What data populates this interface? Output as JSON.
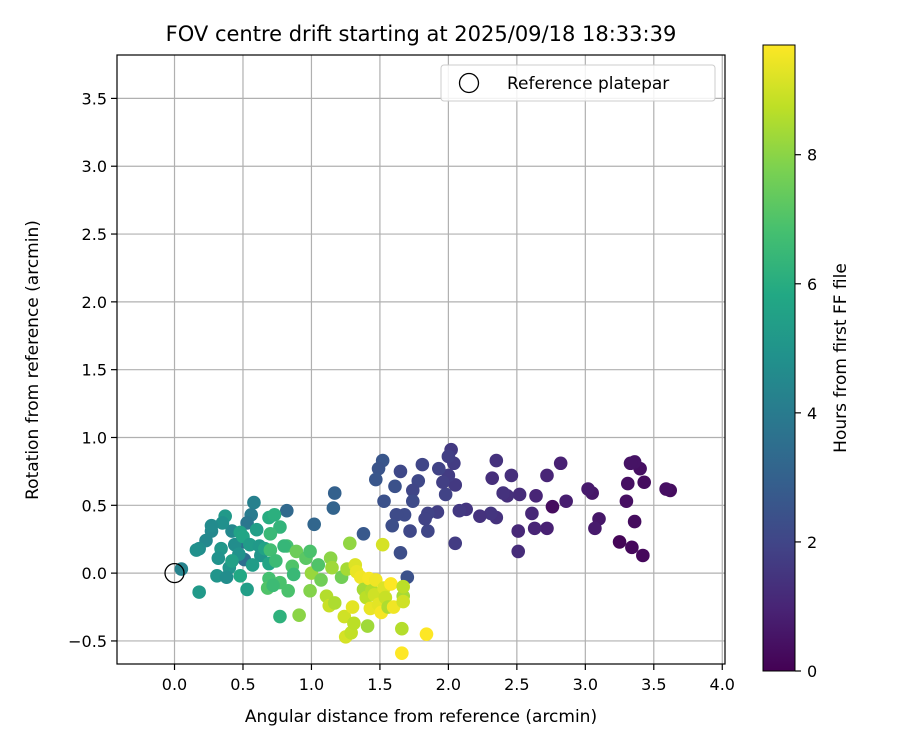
{
  "chart_data": {
    "type": "scatter",
    "title": "FOV centre drift starting at 2025/09/18 18:33:39",
    "xlabel": "Angular distance from reference (arcmin)",
    "ylabel": "Rotation from reference (arcmin)",
    "xlim": [
      -0.42,
      4.02
    ],
    "ylim": [
      -0.67,
      3.82
    ],
    "x_ticks": [
      0.0,
      0.5,
      1.0,
      1.5,
      2.0,
      2.5,
      3.0,
      3.5,
      4.0
    ],
    "x_tick_labels": [
      "0.0",
      "0.5",
      "1.0",
      "1.5",
      "2.0",
      "2.5",
      "3.0",
      "3.5",
      "4.0"
    ],
    "y_ticks": [
      -0.5,
      0.0,
      0.5,
      1.0,
      1.5,
      2.0,
      2.5,
      3.0,
      3.5
    ],
    "y_tick_labels": [
      "−0.5",
      "0.0",
      "0.5",
      "1.0",
      "1.5",
      "2.0",
      "2.5",
      "3.0",
      "3.5"
    ],
    "grid": true,
    "legend": {
      "placement": "top-right",
      "entries": [
        "Reference platepar"
      ]
    },
    "reference_point": {
      "x": 0.0,
      "y": 0.0,
      "label": "Reference platepar",
      "marker": "open-circle"
    },
    "colorbar": {
      "label": "Hours from first FF file",
      "colormap": "viridis",
      "range": [
        0,
        9.7
      ],
      "ticks": [
        0,
        2,
        4,
        6,
        8
      ],
      "tick_labels": [
        "0",
        "2",
        "4",
        "6",
        "8"
      ]
    },
    "points": [
      {
        "x": 3.62,
        "y": 0.61,
        "c": 0.3
      },
      {
        "x": 3.59,
        "y": 0.62,
        "c": 0.4
      },
      {
        "x": 3.42,
        "y": 0.13,
        "c": 0.2
      },
      {
        "x": 3.43,
        "y": 0.67,
        "c": 0.3
      },
      {
        "x": 3.4,
        "y": 0.77,
        "c": 0.4
      },
      {
        "x": 3.36,
        "y": 0.82,
        "c": 0.5
      },
      {
        "x": 3.33,
        "y": 0.81,
        "c": 0.5
      },
      {
        "x": 3.31,
        "y": 0.66,
        "c": 0.4
      },
      {
        "x": 3.3,
        "y": 0.53,
        "c": 0.4
      },
      {
        "x": 3.36,
        "y": 0.38,
        "c": 0.3
      },
      {
        "x": 3.34,
        "y": 0.19,
        "c": 0.2
      },
      {
        "x": 3.25,
        "y": 0.23,
        "c": 0.1
      },
      {
        "x": 3.1,
        "y": 0.4,
        "c": 0.6
      },
      {
        "x": 3.07,
        "y": 0.33,
        "c": 0.7
      },
      {
        "x": 3.05,
        "y": 0.59,
        "c": 0.6
      },
      {
        "x": 3.02,
        "y": 0.62,
        "c": 0.7
      },
      {
        "x": 2.86,
        "y": 0.53,
        "c": 0.8
      },
      {
        "x": 2.82,
        "y": 0.81,
        "c": 0.9
      },
      {
        "x": 2.76,
        "y": 0.49,
        "c": 0.3
      },
      {
        "x": 2.72,
        "y": 0.33,
        "c": 0.9
      },
      {
        "x": 2.72,
        "y": 0.72,
        "c": 1.0
      },
      {
        "x": 2.64,
        "y": 0.57,
        "c": 1.0
      },
      {
        "x": 2.63,
        "y": 0.33,
        "c": 1.0
      },
      {
        "x": 2.61,
        "y": 0.44,
        "c": 1.1
      },
      {
        "x": 2.52,
        "y": 0.58,
        "c": 1.2
      },
      {
        "x": 2.51,
        "y": 0.31,
        "c": 1.1
      },
      {
        "x": 2.51,
        "y": 0.16,
        "c": 1.2
      },
      {
        "x": 2.46,
        "y": 0.72,
        "c": 1.3
      },
      {
        "x": 2.43,
        "y": 0.57,
        "c": 1.3
      },
      {
        "x": 2.4,
        "y": 0.59,
        "c": 1.4
      },
      {
        "x": 2.35,
        "y": 0.83,
        "c": 1.4
      },
      {
        "x": 2.35,
        "y": 0.41,
        "c": 1.4
      },
      {
        "x": 2.32,
        "y": 0.7,
        "c": 1.3
      },
      {
        "x": 2.31,
        "y": 0.44,
        "c": 1.5
      },
      {
        "x": 2.23,
        "y": 0.42,
        "c": 1.4
      },
      {
        "x": 2.13,
        "y": 0.47,
        "c": 1.5
      },
      {
        "x": 2.08,
        "y": 0.46,
        "c": 1.6
      },
      {
        "x": 2.05,
        "y": 0.22,
        "c": 1.7
      },
      {
        "x": 2.05,
        "y": 0.65,
        "c": 1.6
      },
      {
        "x": 2.04,
        "y": 0.81,
        "c": 1.7
      },
      {
        "x": 2.02,
        "y": 0.91,
        "c": 1.6
      },
      {
        "x": 2.0,
        "y": 0.86,
        "c": 1.8
      },
      {
        "x": 2.0,
        "y": 0.72,
        "c": 1.7
      },
      {
        "x": 1.98,
        "y": 0.58,
        "c": 1.9
      },
      {
        "x": 1.96,
        "y": 0.67,
        "c": 1.8
      },
      {
        "x": 1.93,
        "y": 0.77,
        "c": 1.9
      },
      {
        "x": 1.92,
        "y": 0.45,
        "c": 1.8
      },
      {
        "x": 1.85,
        "y": 0.44,
        "c": 1.9
      },
      {
        "x": 1.85,
        "y": 0.31,
        "c": 2.0
      },
      {
        "x": 1.83,
        "y": 0.4,
        "c": 1.9
      },
      {
        "x": 1.81,
        "y": 0.8,
        "c": 2.0
      },
      {
        "x": 1.78,
        "y": 0.68,
        "c": 2.1
      },
      {
        "x": 1.74,
        "y": 0.61,
        "c": 2.0
      },
      {
        "x": 1.74,
        "y": 0.53,
        "c": 2.2
      },
      {
        "x": 1.72,
        "y": 0.31,
        "c": 2.1
      },
      {
        "x": 1.68,
        "y": 0.43,
        "c": 2.2
      },
      {
        "x": 1.65,
        "y": 0.75,
        "c": 2.1
      },
      {
        "x": 1.65,
        "y": 0.15,
        "c": 2.3
      },
      {
        "x": 1.62,
        "y": 0.43,
        "c": 2.2
      },
      {
        "x": 1.61,
        "y": 0.64,
        "c": 2.4
      },
      {
        "x": 1.59,
        "y": 0.35,
        "c": 2.3
      },
      {
        "x": 1.53,
        "y": 0.53,
        "c": 2.4
      },
      {
        "x": 1.52,
        "y": 0.83,
        "c": 2.6
      },
      {
        "x": 1.49,
        "y": 0.77,
        "c": 2.5
      },
      {
        "x": 1.47,
        "y": 0.69,
        "c": 2.6
      },
      {
        "x": 1.7,
        "y": -0.03,
        "c": 2.4
      },
      {
        "x": 1.38,
        "y": 0.29,
        "c": 2.7
      },
      {
        "x": 1.17,
        "y": 0.59,
        "c": 3.0
      },
      {
        "x": 1.16,
        "y": 0.48,
        "c": 3.1
      },
      {
        "x": 1.02,
        "y": 0.36,
        "c": 3.2
      },
      {
        "x": 0.82,
        "y": 0.46,
        "c": 3.3
      },
      {
        "x": 0.58,
        "y": 0.52,
        "c": 4.2
      },
      {
        "x": 0.56,
        "y": 0.43,
        "c": 4.0
      },
      {
        "x": 0.53,
        "y": 0.37,
        "c": 3.8
      },
      {
        "x": 0.51,
        "y": 0.23,
        "c": 3.6
      },
      {
        "x": 0.51,
        "y": 0.1,
        "c": 3.5
      },
      {
        "x": 0.42,
        "y": 0.31,
        "c": 4.5
      },
      {
        "x": 0.44,
        "y": 0.21,
        "c": 4.7
      },
      {
        "x": 0.47,
        "y": 0.14,
        "c": 4.9
      },
      {
        "x": 0.4,
        "y": 0.04,
        "c": 5.0
      },
      {
        "x": 0.37,
        "y": 0.42,
        "c": 5.2
      },
      {
        "x": 0.35,
        "y": 0.37,
        "c": 4.8
      },
      {
        "x": 0.34,
        "y": 0.18,
        "c": 5.1
      },
      {
        "x": 0.32,
        "y": 0.11,
        "c": 4.9
      },
      {
        "x": 0.31,
        "y": -0.02,
        "c": 5.0
      },
      {
        "x": 0.38,
        "y": -0.03,
        "c": 4.7
      },
      {
        "x": 0.27,
        "y": 0.31,
        "c": 4.5
      },
      {
        "x": 0.27,
        "y": 0.35,
        "c": 4.6
      },
      {
        "x": 0.23,
        "y": 0.24,
        "c": 4.5
      },
      {
        "x": 0.18,
        "y": 0.18,
        "c": 4.7
      },
      {
        "x": 0.16,
        "y": 0.17,
        "c": 4.8
      },
      {
        "x": 0.18,
        "y": -0.14,
        "c": 5.2
      },
      {
        "x": 0.05,
        "y": 0.03,
        "c": 4.3
      },
      {
        "x": 0.42,
        "y": 0.09,
        "c": 5.5
      },
      {
        "x": 0.48,
        "y": 0.3,
        "c": 5.6
      },
      {
        "x": 0.5,
        "y": 0.27,
        "c": 5.7
      },
      {
        "x": 0.55,
        "y": 0.21,
        "c": 5.3
      },
      {
        "x": 0.6,
        "y": 0.32,
        "c": 5.4
      },
      {
        "x": 0.62,
        "y": 0.2,
        "c": 5.2
      },
      {
        "x": 0.63,
        "y": 0.13,
        "c": 5.0
      },
      {
        "x": 0.57,
        "y": 0.06,
        "c": 5.3
      },
      {
        "x": 0.53,
        "y": -0.12,
        "c": 5.4
      },
      {
        "x": 0.48,
        "y": -0.02,
        "c": 5.8
      },
      {
        "x": 0.69,
        "y": 0.07,
        "c": 5.7
      },
      {
        "x": 0.66,
        "y": 0.18,
        "c": 5.6
      },
      {
        "x": 0.69,
        "y": 0.41,
        "c": 6.0
      },
      {
        "x": 0.73,
        "y": 0.43,
        "c": 6.1
      },
      {
        "x": 0.77,
        "y": 0.34,
        "c": 6.3
      },
      {
        "x": 0.7,
        "y": 0.29,
        "c": 6.5
      },
      {
        "x": 0.7,
        "y": 0.17,
        "c": 6.7
      },
      {
        "x": 0.74,
        "y": 0.09,
        "c": 6.6
      },
      {
        "x": 0.77,
        "y": -0.07,
        "c": 6.9
      },
      {
        "x": 0.69,
        "y": -0.04,
        "c": 6.8
      },
      {
        "x": 0.68,
        "y": -0.11,
        "c": 7.0
      },
      {
        "x": 0.72,
        "y": -0.09,
        "c": 6.6
      },
      {
        "x": 0.77,
        "y": -0.32,
        "c": 6.2
      },
      {
        "x": 0.82,
        "y": 0.2,
        "c": 6.8
      },
      {
        "x": 0.8,
        "y": 0.2,
        "c": 6.4
      },
      {
        "x": 0.86,
        "y": 0.05,
        "c": 7.0
      },
      {
        "x": 0.87,
        "y": -0.01,
        "c": 6.5
      },
      {
        "x": 0.83,
        "y": -0.13,
        "c": 6.9
      },
      {
        "x": 0.89,
        "y": 0.16,
        "c": 7.5
      },
      {
        "x": 0.91,
        "y": -0.31,
        "c": 8.0
      },
      {
        "x": 0.96,
        "y": 0.11,
        "c": 7.2
      },
      {
        "x": 0.99,
        "y": 0.16,
        "c": 6.9
      },
      {
        "x": 1.0,
        "y": 0.0,
        "c": 8.2
      },
      {
        "x": 1.05,
        "y": 0.06,
        "c": 7.0
      },
      {
        "x": 1.07,
        "y": -0.05,
        "c": 7.6
      },
      {
        "x": 0.99,
        "y": -0.13,
        "c": 7.9
      },
      {
        "x": 1.11,
        "y": -0.17,
        "c": 8.6
      },
      {
        "x": 1.13,
        "y": -0.24,
        "c": 8.9
      },
      {
        "x": 1.14,
        "y": 0.11,
        "c": 8.0
      },
      {
        "x": 1.15,
        "y": 0.04,
        "c": 8.3
      },
      {
        "x": 1.17,
        "y": -0.22,
        "c": 8.5
      },
      {
        "x": 1.22,
        "y": -0.03,
        "c": 7.6
      },
      {
        "x": 1.24,
        "y": -0.32,
        "c": 9.0
      },
      {
        "x": 1.25,
        "y": -0.47,
        "c": 9.1
      },
      {
        "x": 1.26,
        "y": 0.03,
        "c": 8.4
      },
      {
        "x": 1.28,
        "y": 0.22,
        "c": 8.1
      },
      {
        "x": 1.29,
        "y": -0.44,
        "c": 8.8
      },
      {
        "x": 1.3,
        "y": -0.25,
        "c": 9.3
      },
      {
        "x": 1.31,
        "y": -0.37,
        "c": 8.7
      },
      {
        "x": 1.32,
        "y": 0.06,
        "c": 9.2
      },
      {
        "x": 1.33,
        "y": 0.01,
        "c": 9.4
      },
      {
        "x": 1.36,
        "y": -0.03,
        "c": 9.5
      },
      {
        "x": 1.38,
        "y": -0.12,
        "c": 8.4
      },
      {
        "x": 1.4,
        "y": -0.18,
        "c": 8.7
      },
      {
        "x": 1.41,
        "y": -0.39,
        "c": 8.3
      },
      {
        "x": 1.42,
        "y": -0.04,
        "c": 9.6
      },
      {
        "x": 1.43,
        "y": -0.26,
        "c": 9.4
      },
      {
        "x": 1.44,
        "y": -0.13,
        "c": 8.6
      },
      {
        "x": 1.46,
        "y": -0.16,
        "c": 9.0
      },
      {
        "x": 1.47,
        "y": -0.05,
        "c": 9.5
      },
      {
        "x": 1.49,
        "y": -0.23,
        "c": 9.3
      },
      {
        "x": 1.51,
        "y": -0.29,
        "c": 9.6
      },
      {
        "x": 1.52,
        "y": 0.21,
        "c": 9.1
      },
      {
        "x": 1.53,
        "y": -0.11,
        "c": 9.2
      },
      {
        "x": 1.54,
        "y": -0.18,
        "c": 8.9
      },
      {
        "x": 1.56,
        "y": -0.25,
        "c": 8.5
      },
      {
        "x": 1.58,
        "y": -0.08,
        "c": 9.7
      },
      {
        "x": 1.6,
        "y": -0.25,
        "c": 9.5
      },
      {
        "x": 1.66,
        "y": -0.41,
        "c": 8.6
      },
      {
        "x": 1.67,
        "y": -0.17,
        "c": 8.4
      },
      {
        "x": 1.67,
        "y": -0.21,
        "c": 9.0
      },
      {
        "x": 1.67,
        "y": -0.1,
        "c": 8.7
      },
      {
        "x": 1.66,
        "y": -0.59,
        "c": 9.7
      },
      {
        "x": 1.84,
        "y": -0.45,
        "c": 9.7
      }
    ]
  }
}
